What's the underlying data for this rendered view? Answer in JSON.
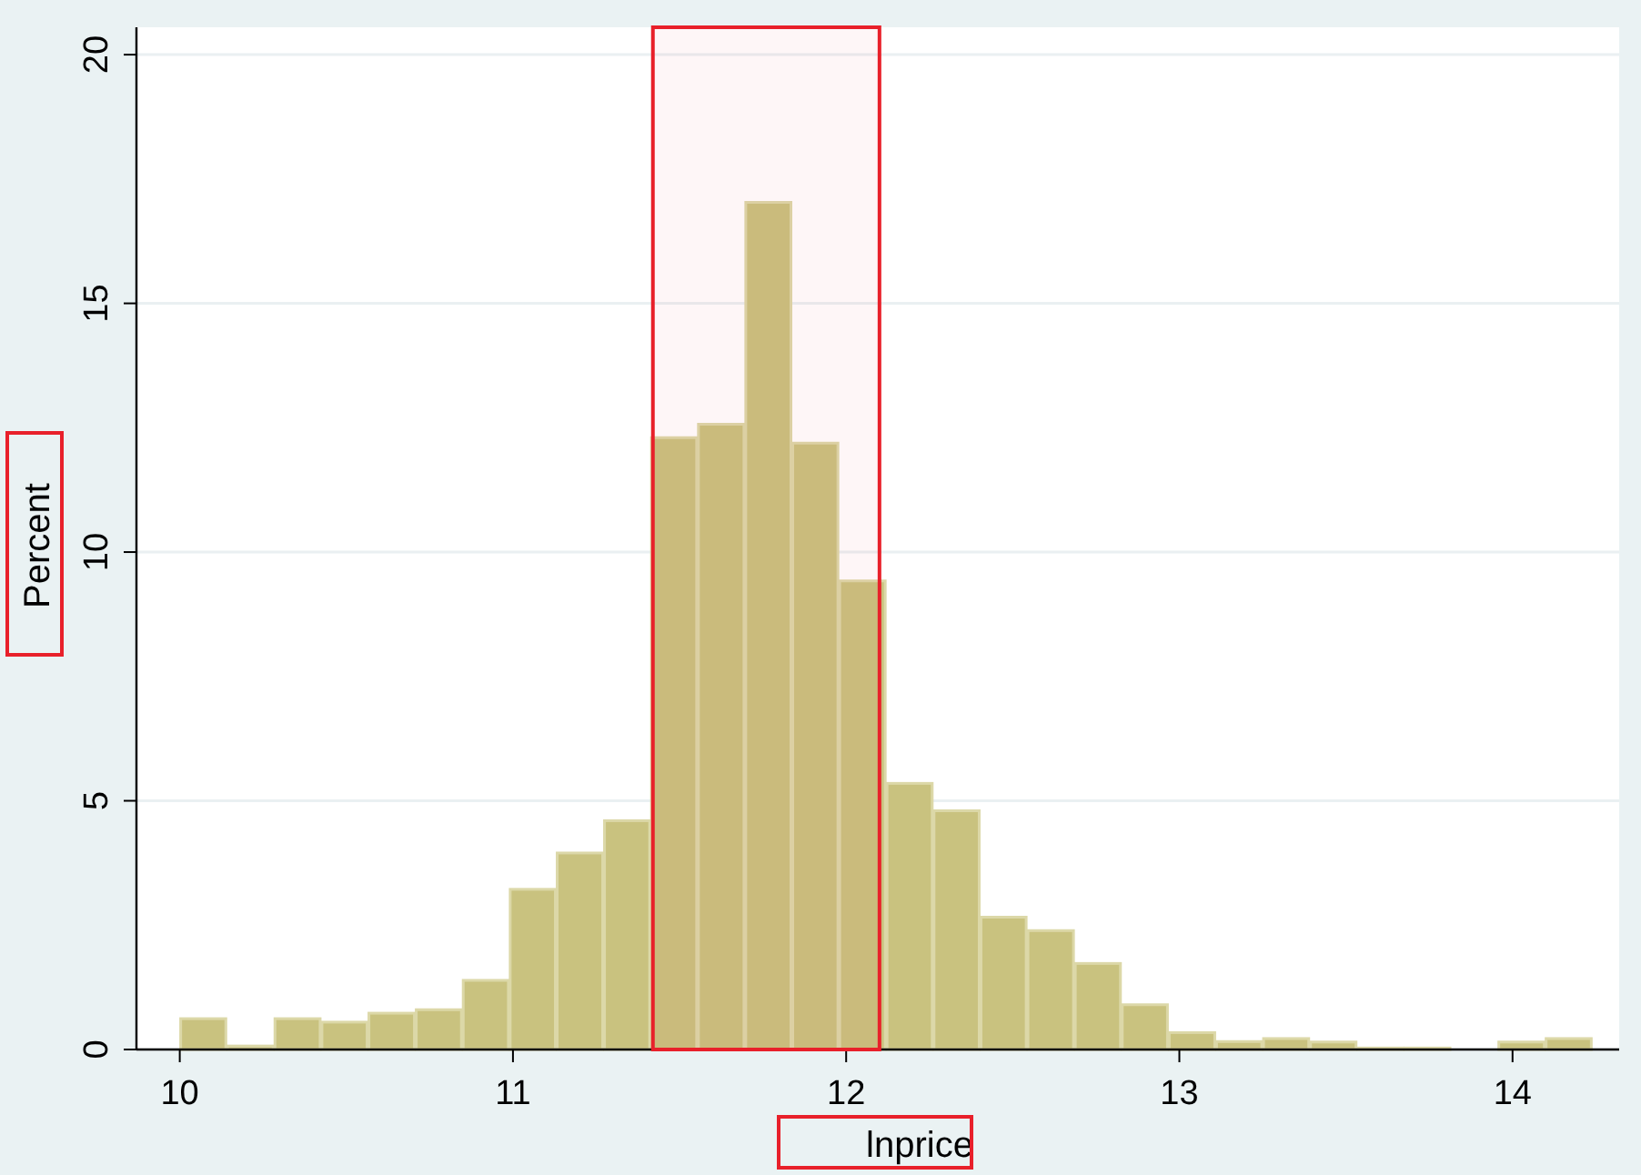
{
  "chart_data": {
    "type": "histogram",
    "xlabel": "lnprice",
    "ylabel": "Percent",
    "color": "#c9c27f",
    "bins": [
      10.0,
      10.141,
      10.283,
      10.424,
      10.565,
      10.707,
      10.848,
      10.989,
      11.13,
      11.272,
      11.413,
      11.554,
      11.696,
      11.837,
      11.978,
      12.12,
      12.261,
      12.402,
      12.543,
      12.685,
      12.826,
      12.967,
      13.109,
      13.25,
      13.391,
      13.533,
      13.674,
      13.815,
      13.956,
      14.098,
      14.239
    ],
    "values": [
      0.62,
      0.07,
      0.62,
      0.55,
      0.73,
      0.8,
      1.39,
      3.22,
      3.95,
      4.6,
      12.3,
      12.57,
      17.03,
      12.19,
      9.42,
      5.35,
      4.8,
      2.66,
      2.39,
      1.73,
      0.9,
      0.34,
      0.16,
      0.22,
      0.15,
      0.03,
      0.03,
      0,
      0.15,
      0.22
    ],
    "xlim": [
      9.87,
      14.32
    ],
    "xticks": [
      10,
      11,
      12,
      13,
      14
    ],
    "ylim": [
      0,
      20.55
    ],
    "yticks": [
      0,
      5,
      10,
      15,
      20
    ],
    "grid": "y",
    "bands": [
      {
        "axis": "x",
        "from": 11.42,
        "to": 12.1,
        "color": "#e8202a"
      }
    ]
  }
}
